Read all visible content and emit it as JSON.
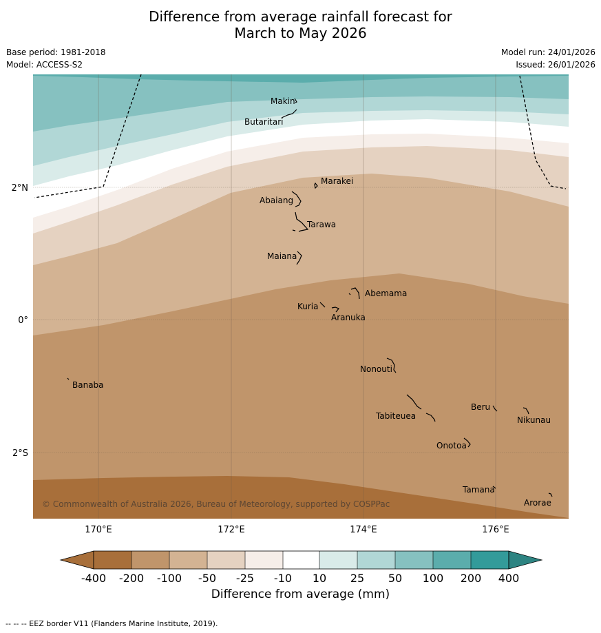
{
  "title": {
    "line1": "Difference from average rainfall forecast for",
    "line2": "March to May 2026"
  },
  "meta": {
    "base_period": "Base period: 1981-2018",
    "model": "Model: ACCESS-S2",
    "model_run": "Model run: 24/01/2026",
    "issued": "Issued: 26/01/2026"
  },
  "axes": {
    "x_ticks": [
      "170°E",
      "172°E",
      "174°E",
      "176°E"
    ],
    "y_ticks": [
      "2°N",
      "0°",
      "2°S"
    ]
  },
  "places": {
    "makin": "Makin",
    "butaritari": "Butaritari",
    "marakei": "Marakei",
    "abaiang": "Abaiang",
    "tarawa": "Tarawa",
    "maiana": "Maiana",
    "abemama": "Abemama",
    "kuria": "Kuria",
    "aranuka": "Aranuka",
    "nonouti": "Nonouti",
    "banaba": "Banaba",
    "tabiteuea": "Tabiteuea",
    "beru": "Beru",
    "nikunau": "Nikunau",
    "onotoa": "Onotoa",
    "tamana": "Tamana",
    "arorae": "Arorae"
  },
  "copyright": "© Commonwealth of Australia 2026, Bureau of Meteorology, supported by COSPPac",
  "colorbar": {
    "title": "Difference from average (mm)",
    "ticks": [
      "-400",
      "-200",
      "-100",
      "-50",
      "-25",
      "-10",
      "10",
      "25",
      "50",
      "100",
      "200",
      "400"
    ],
    "colors": [
      "#a86f3a",
      "#c0956b",
      "#d3b393",
      "#e5d2c1",
      "#f6eee9",
      "#ffffff",
      "#d9ebe9",
      "#b1d7d6",
      "#86c1c0",
      "#5badac",
      "#339b9a",
      "#2d8482"
    ]
  },
  "footer": "--  --  -- EEZ border V11 (Flanders Marine Institute, 2019)."
}
